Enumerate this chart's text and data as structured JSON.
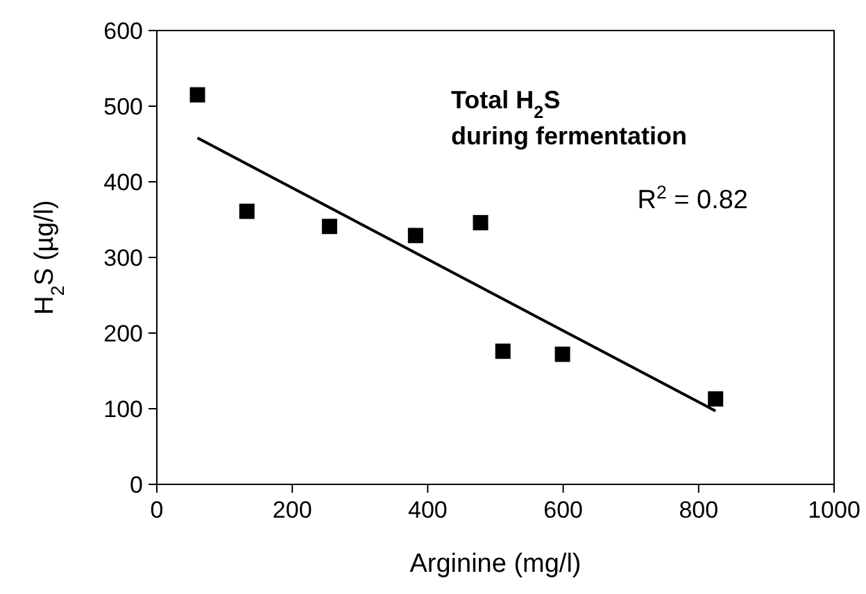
{
  "chart_data": {
    "type": "scatter",
    "title": "Total H$_{2}$S\nduring fermentation",
    "xlabel": "Arginine (mg/l)",
    "ylabel": "H$_{2}$S (µg/l)",
    "annotations": [
      "R$^{2}$ = 0.82"
    ],
    "x": [
      60,
      133,
      255,
      382,
      478,
      511,
      599,
      825
    ],
    "series": [
      {
        "color": "#000000",
        "values": [
          515,
          361,
          341,
          329,
          346,
          176,
          172,
          113
        ],
        "marker": "square"
      },
      {
        "type": "line",
        "color": "#000000",
        "x": [
          60,
          825
        ],
        "values": [
          458,
          97
        ],
        "marker": "none",
        "line_style": "solid"
      }
    ],
    "xlim": [
      0,
      1000
    ],
    "xticks": [
      0,
      200,
      400,
      600,
      800,
      1000
    ],
    "ylim": [
      0,
      600
    ],
    "yticks": [
      0,
      100,
      200,
      300,
      400,
      500,
      600
    ],
    "grid": false
  }
}
